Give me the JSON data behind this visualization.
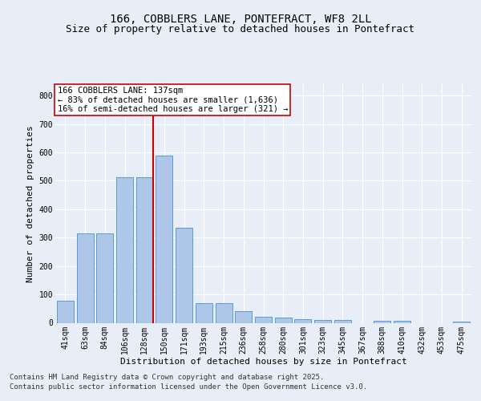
{
  "title_line1": "166, COBBLERS LANE, PONTEFRACT, WF8 2LL",
  "title_line2": "Size of property relative to detached houses in Pontefract",
  "xlabel": "Distribution of detached houses by size in Pontefract",
  "ylabel": "Number of detached properties",
  "categories": [
    "41sqm",
    "63sqm",
    "84sqm",
    "106sqm",
    "128sqm",
    "150sqm",
    "171sqm",
    "193sqm",
    "215sqm",
    "236sqm",
    "258sqm",
    "280sqm",
    "301sqm",
    "323sqm",
    "345sqm",
    "367sqm",
    "388sqm",
    "410sqm",
    "432sqm",
    "453sqm",
    "475sqm"
  ],
  "values": [
    78,
    315,
    316,
    512,
    512,
    590,
    335,
    68,
    70,
    42,
    20,
    18,
    12,
    10,
    10,
    0,
    7,
    8,
    0,
    0,
    5
  ],
  "bar_color": "#aec6e8",
  "bar_edge_color": "#5b9bd5",
  "annotation_text_line1": "166 COBBLERS LANE: 137sqm",
  "annotation_text_line2": "← 83% of detached houses are smaller (1,636)",
  "annotation_text_line3": "16% of semi-detached houses are larger (321) →",
  "vline_color": "#cc0000",
  "annotation_box_facecolor": "#ffffff",
  "annotation_box_edgecolor": "#cc0000",
  "ylim": [
    0,
    840
  ],
  "yticks": [
    0,
    100,
    200,
    300,
    400,
    500,
    600,
    700,
    800
  ],
  "footer_line1": "Contains HM Land Registry data © Crown copyright and database right 2025.",
  "footer_line2": "Contains public sector information licensed under the Open Government Licence v3.0.",
  "background_color": "#e8eef7",
  "plot_bg_color": "#e8eef7",
  "grid_color": "#ffffff",
  "title_fontsize": 10,
  "subtitle_fontsize": 9,
  "axis_label_fontsize": 8,
  "tick_fontsize": 7,
  "annotation_fontsize": 7.5,
  "footer_fontsize": 6.5,
  "vline_x": 4.42
}
